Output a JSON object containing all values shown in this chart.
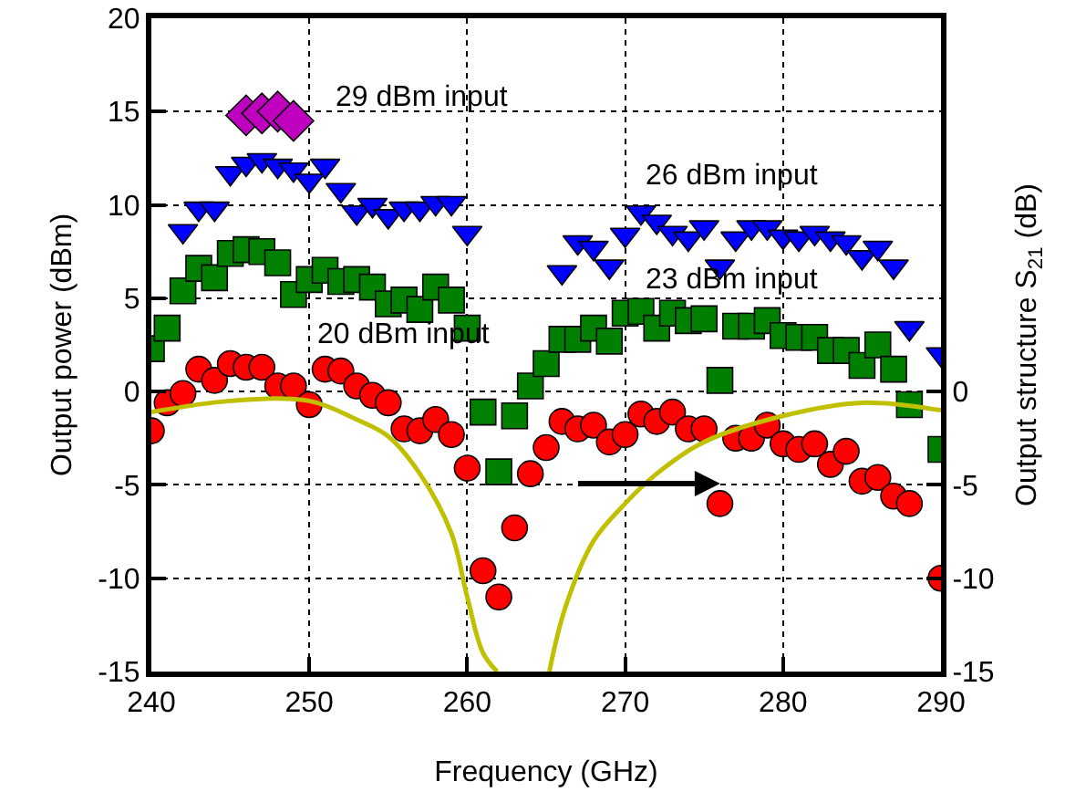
{
  "chart_data": {
    "type": "scatter",
    "xlabel": "Frequency (GHz)",
    "ylabel": "Output power (dBm)",
    "y2label": "Output structure S$_{21}$ (dB)",
    "x": [
      240,
      241,
      242,
      243,
      244,
      245,
      246,
      247,
      248,
      249,
      250,
      251,
      252,
      253,
      254,
      255,
      256,
      257,
      258,
      259,
      260,
      261,
      262,
      263,
      264,
      265,
      266,
      267,
      268,
      269,
      270,
      271,
      272,
      273,
      274,
      275,
      276,
      277,
      278,
      279,
      280,
      281,
      282,
      283,
      284,
      285,
      286,
      287,
      288,
      289,
      290
    ],
    "series": [
      {
        "color": "#ff0000",
        "marker": "circle",
        "values": [
          -2.1,
          -0.6,
          -0.1,
          1.2,
          0.6,
          1.5,
          1.3,
          1.3,
          0.3,
          0.3,
          -0.7,
          1.2,
          1.1,
          0.3,
          -0.2,
          -0.6,
          -2,
          -2.1,
          -1.5,
          -2.3,
          -4.1,
          -9.6,
          -11,
          -7.3,
          -4.4,
          -3,
          -1.6,
          -2,
          -1.8,
          -2.7,
          -2.3,
          -1.2,
          -1.6,
          -1.1,
          -2,
          -2,
          -6,
          -2.5,
          -2.5,
          -1.8,
          -2.8,
          -3.1,
          -2.8,
          -3.9,
          -3.2,
          -4.8,
          -4.6,
          -5.6,
          -6,
          null,
          -10
        ]
      },
      {
        "color": "#007f00",
        "marker": "square",
        "values": [
          2.3,
          3.4,
          5.4,
          6.6,
          6.1,
          7.4,
          7.6,
          7.5,
          6.9,
          5.2,
          6,
          6.5,
          5.9,
          6,
          5.6,
          4.7,
          4.9,
          4.4,
          5.6,
          4.9,
          3.4,
          -1.1,
          -4.3,
          -1.3,
          0.3,
          1.5,
          2.8,
          2.8,
          3.4,
          2.7,
          4.2,
          4.3,
          3.4,
          4.2,
          3.8,
          3.9,
          0.6,
          3.5,
          3.5,
          3.8,
          3,
          2.9,
          2.9,
          2.2,
          2.2,
          1.4,
          2.5,
          1.2,
          -0.7,
          null,
          -3.1
        ]
      },
      {
        "color": "#0000ff",
        "marker": "triangle",
        "values": [
          null,
          null,
          8.6,
          9.8,
          9.8,
          11.7,
          12.2,
          12.4,
          12.1,
          11.9,
          11.3,
          12.1,
          10.8,
          9.6,
          10,
          9.4,
          9.8,
          9.8,
          10.1,
          10.1,
          8.5,
          null,
          null,
          null,
          null,
          null,
          6.4,
          8,
          7.7,
          6.7,
          8.4,
          9.6,
          9.1,
          8.5,
          8.2,
          8.8,
          6.7,
          8.2,
          8.8,
          8.8,
          8.3,
          8.2,
          8.5,
          8.2,
          8,
          7.2,
          7.7,
          6.7,
          3.4,
          null,
          2
        ]
      },
      {
        "color": "#bf00bf",
        "marker": "diamond",
        "x": [
          246,
          247,
          248,
          249
        ],
        "values": [
          14.8,
          14.9,
          15,
          14.5
        ]
      },
      {
        "type": "line",
        "axis": "y2",
        "color": "#c0c000",
        "marker": "none",
        "x": [
          240,
          245,
          250,
          253,
          255,
          257,
          259,
          260,
          261,
          261.9,
          263.5,
          265.2,
          266.2,
          268,
          270,
          272,
          275,
          280,
          285,
          290
        ],
        "values": [
          -1.1,
          -0.5,
          -0.5,
          -1.5,
          -2.4,
          -4.4,
          -7.6,
          -11,
          -14,
          -15,
          null,
          -15,
          -11.6,
          -8,
          -6,
          -4.4,
          -2.7,
          -1.3,
          -0.6,
          -1
        ]
      }
    ],
    "annotations": [
      "29 dBm input",
      "26 dBm input",
      "23 dBm input",
      "20 dBm input"
    ],
    "xlim": [
      240,
      290
    ],
    "xticks": [
      240,
      250,
      260,
      270,
      280,
      290
    ],
    "ylim": [
      -15,
      20
    ],
    "yticks": [
      -15,
      -10,
      -5,
      0,
      5,
      10,
      15,
      20
    ],
    "y2lim": [
      -15,
      20
    ],
    "y2ticks": [
      -15,
      -10,
      -5,
      0
    ],
    "grid": true,
    "legend": false
  }
}
